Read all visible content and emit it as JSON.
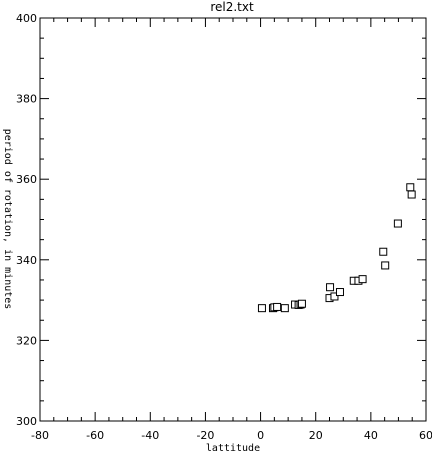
{
  "chart_data": {
    "type": "scatter",
    "title": "rel2.txt",
    "xlabel": "lattitude",
    "ylabel": "period of rotation, in minutes",
    "xlim": [
      -80,
      60
    ],
    "ylim": [
      300,
      400
    ],
    "xticks": [
      -80,
      -60,
      -40,
      -20,
      0,
      20,
      40,
      60
    ],
    "yticks": [
      300,
      320,
      340,
      360,
      380,
      400
    ],
    "x_minor_step": 5,
    "y_minor_step": 5,
    "marker": "square",
    "grid": false,
    "points": [
      {
        "x": 0.5,
        "y": 328.0
      },
      {
        "x": 4.5,
        "y": 328.0
      },
      {
        "x": 5.0,
        "y": 328.2
      },
      {
        "x": 6.0,
        "y": 328.3
      },
      {
        "x": 8.8,
        "y": 328.0
      },
      {
        "x": 12.5,
        "y": 328.9
      },
      {
        "x": 13.8,
        "y": 328.8
      },
      {
        "x": 14.5,
        "y": 328.9
      },
      {
        "x": 15.0,
        "y": 329.1
      },
      {
        "x": 25.2,
        "y": 333.2
      },
      {
        "x": 25.0,
        "y": 330.5
      },
      {
        "x": 26.8,
        "y": 330.9
      },
      {
        "x": 28.8,
        "y": 332.0
      },
      {
        "x": 33.8,
        "y": 334.8
      },
      {
        "x": 35.5,
        "y": 334.8
      },
      {
        "x": 37.0,
        "y": 335.2
      },
      {
        "x": 44.5,
        "y": 342.0
      },
      {
        "x": 45.2,
        "y": 338.6
      },
      {
        "x": 49.8,
        "y": 349.0
      },
      {
        "x": 54.3,
        "y": 358.0
      },
      {
        "x": 54.8,
        "y": 356.2
      }
    ]
  }
}
